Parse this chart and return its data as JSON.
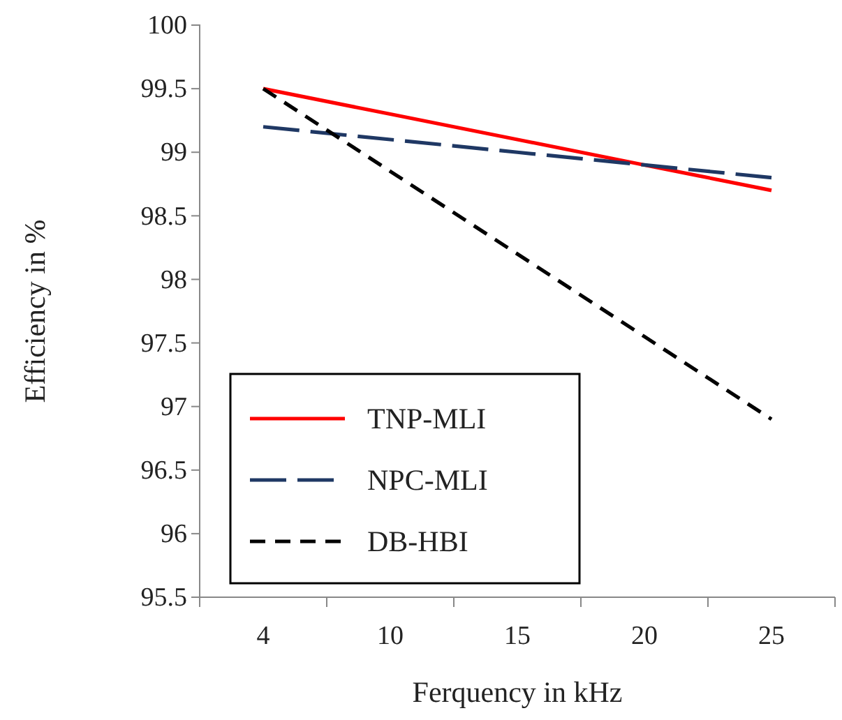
{
  "chart_data": {
    "type": "line",
    "xlabel": "Ferquency in kHz",
    "ylabel": "Efficiency in %",
    "categories": [
      "4",
      "10",
      "15",
      "20",
      "25"
    ],
    "ylim": [
      95.5,
      100
    ],
    "yticks": [
      95.5,
      96,
      96.5,
      97,
      97.5,
      98,
      98.5,
      99,
      99.5,
      100
    ],
    "legend": "bottom left",
    "marker": "none",
    "series": [
      {
        "name": "TNP-MLI",
        "color": "#ff0000",
        "line_style": "solid",
        "values": [
          99.5,
          99.3,
          99.1,
          98.9,
          98.7
        ]
      },
      {
        "name": "NPC-MLI",
        "color": "#1f3864",
        "line_style": "dashed",
        "values": [
          99.2,
          99.1,
          99.0,
          98.9,
          98.8
        ]
      },
      {
        "name": "DB-HBI",
        "color": "#000000",
        "line_style": "dashed",
        "values": [
          99.5,
          98.85,
          98.2,
          97.55,
          96.9
        ]
      }
    ]
  }
}
